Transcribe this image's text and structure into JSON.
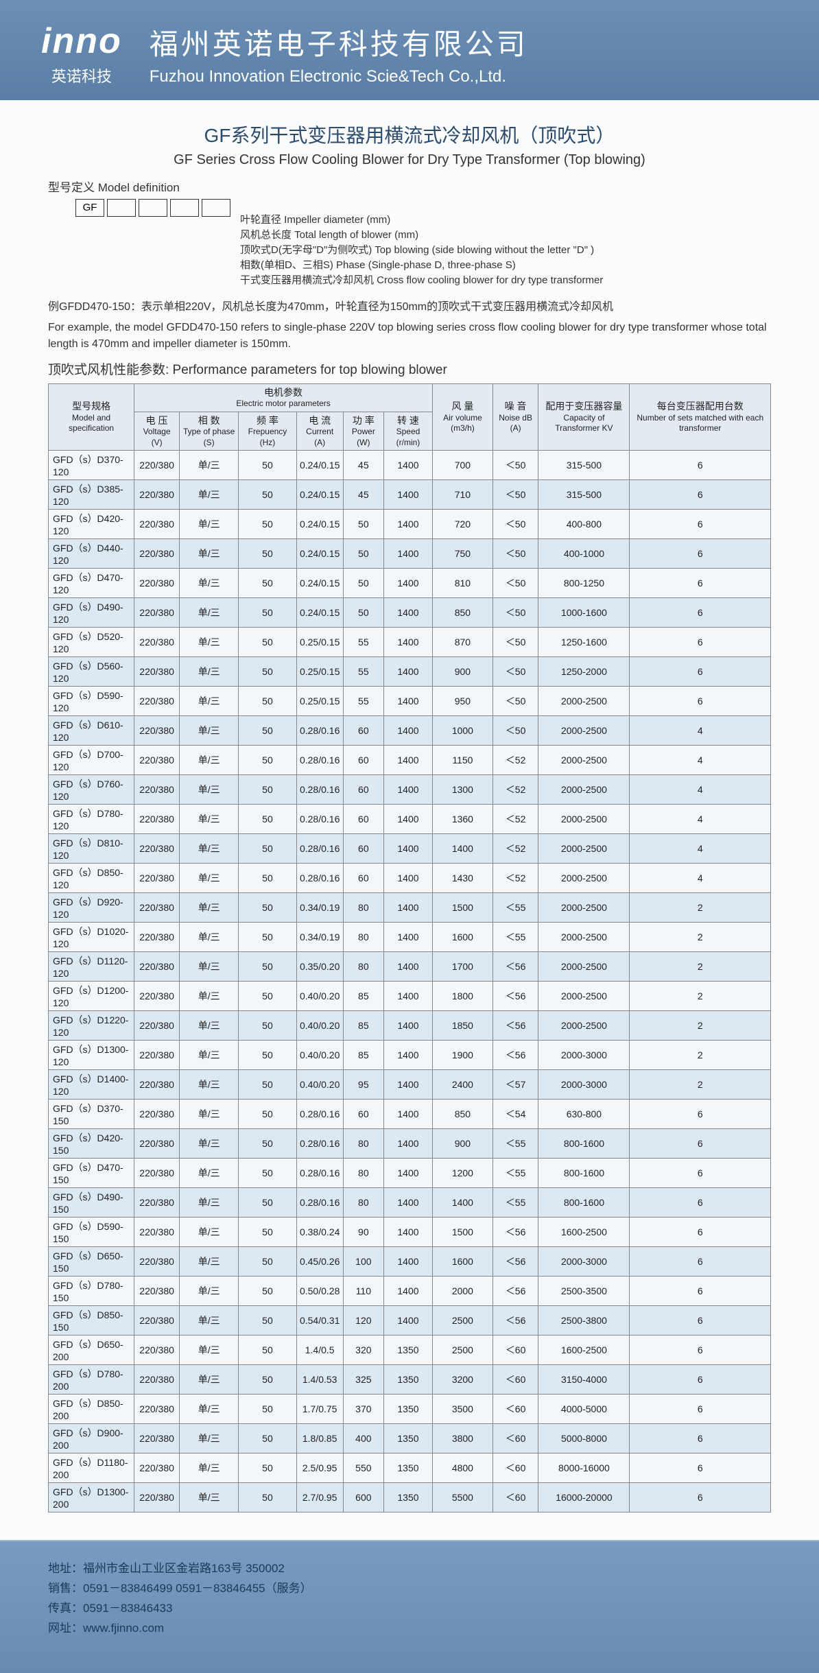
{
  "header": {
    "logo": "inno",
    "logo_sub": "英诺科技",
    "company_cn": "福州英诺电子科技有限公司",
    "company_en": "Fuzhou Innovation Electronic Scie&Tech Co.,Ltd."
  },
  "title_cn": "GF系列干式变压器用横流式冷却风机（顶吹式）",
  "title_en": "GF Series Cross Flow Cooling Blower for Dry Type Transformer (Top blowing)",
  "model_def_label": "型号定义  Model definition",
  "boxes": [
    "GF",
    "",
    "",
    "",
    ""
  ],
  "def_lines": [
    "叶轮直径 Impeller diameter (mm)",
    "风机总长度 Total length of blower (mm)",
    "顶吹式D(无字母\"D\"为侧吹式) Top blowing (side blowing without the letter \"D\" )",
    "相数(单相D、三相S)  Phase (Single-phase D, three-phase S)",
    "干式变压器用横流式冷却风机 Cross flow cooling blower for dry type transformer"
  ],
  "example_cn": "例GFDD470-150：表示单相220V，风机总长度为470mm，叶轮直径为150mm的顶吹式干式变压器用横流式冷却风机",
  "example_en": "For example, the model GFDD470-150 refers to single-phase 220V top blowing series cross flow cooling blower for dry type transformer whose total length is 470mm and impeller diameter is 150mm.",
  "section_title": "顶吹式风机性能参数: Performance parameters for top blowing blower",
  "headers": {
    "motor_params": {
      "cn": "电机参数",
      "en": "Electric motor parameters"
    },
    "model": {
      "cn": "型号规格",
      "en": "Model and specification"
    },
    "voltage": {
      "cn": "电 压",
      "en": "Voltage (V)"
    },
    "phase": {
      "cn": "相 数",
      "en": "Type of phase (S)"
    },
    "freq": {
      "cn": "频 率",
      "en": "Frepuency (Hz)"
    },
    "current": {
      "cn": "电 流",
      "en": "Current (A)"
    },
    "power": {
      "cn": "功 率",
      "en": "Power (W)"
    },
    "speed": {
      "cn": "转 速",
      "en": "Speed (r/min)"
    },
    "air": {
      "cn": "风 量",
      "en": "Air volume (m3/h)"
    },
    "noise": {
      "cn": "噪 音",
      "en": "Noise dB (A)"
    },
    "capacity": {
      "cn": "配用于变压器容量",
      "en": "Capacity of Transformer KV"
    },
    "sets": {
      "cn": "每台变压器配用台数",
      "en": "Number of sets matched with each transformer"
    }
  },
  "rows": [
    [
      "GFD（s）D370-120",
      "220/380",
      "单/三",
      "50",
      "0.24/0.15",
      "45",
      "1400",
      "700",
      "＜50",
      "315-500",
      "6"
    ],
    [
      "GFD（s）D385-120",
      "220/380",
      "单/三",
      "50",
      "0.24/0.15",
      "45",
      "1400",
      "710",
      "＜50",
      "315-500",
      "6"
    ],
    [
      "GFD（s）D420-120",
      "220/380",
      "单/三",
      "50",
      "0.24/0.15",
      "50",
      "1400",
      "720",
      "＜50",
      "400-800",
      "6"
    ],
    [
      "GFD（s）D440-120",
      "220/380",
      "单/三",
      "50",
      "0.24/0.15",
      "50",
      "1400",
      "750",
      "＜50",
      "400-1000",
      "6"
    ],
    [
      "GFD（s）D470-120",
      "220/380",
      "单/三",
      "50",
      "0.24/0.15",
      "50",
      "1400",
      "810",
      "＜50",
      "800-1250",
      "6"
    ],
    [
      "GFD（s）D490-120",
      "220/380",
      "单/三",
      "50",
      "0.24/0.15",
      "50",
      "1400",
      "850",
      "＜50",
      "1000-1600",
      "6"
    ],
    [
      "GFD（s）D520-120",
      "220/380",
      "单/三",
      "50",
      "0.25/0.15",
      "55",
      "1400",
      "870",
      "＜50",
      "1250-1600",
      "6"
    ],
    [
      "GFD（s）D560-120",
      "220/380",
      "单/三",
      "50",
      "0.25/0.15",
      "55",
      "1400",
      "900",
      "＜50",
      "1250-2000",
      "6"
    ],
    [
      "GFD（s）D590-120",
      "220/380",
      "单/三",
      "50",
      "0.25/0.15",
      "55",
      "1400",
      "950",
      "＜50",
      "2000-2500",
      "6"
    ],
    [
      "GFD（s）D610-120",
      "220/380",
      "单/三",
      "50",
      "0.28/0.16",
      "60",
      "1400",
      "1000",
      "＜50",
      "2000-2500",
      "4"
    ],
    [
      "GFD（s）D700-120",
      "220/380",
      "单/三",
      "50",
      "0.28/0.16",
      "60",
      "1400",
      "1150",
      "＜52",
      "2000-2500",
      "4"
    ],
    [
      "GFD（s）D760-120",
      "220/380",
      "单/三",
      "50",
      "0.28/0.16",
      "60",
      "1400",
      "1300",
      "＜52",
      "2000-2500",
      "4"
    ],
    [
      "GFD（s）D780-120",
      "220/380",
      "单/三",
      "50",
      "0.28/0.16",
      "60",
      "1400",
      "1360",
      "＜52",
      "2000-2500",
      "4"
    ],
    [
      "GFD（s）D810-120",
      "220/380",
      "单/三",
      "50",
      "0.28/0.16",
      "60",
      "1400",
      "1400",
      "＜52",
      "2000-2500",
      "4"
    ],
    [
      "GFD（s）D850-120",
      "220/380",
      "单/三",
      "50",
      "0.28/0.16",
      "60",
      "1400",
      "1430",
      "＜52",
      "2000-2500",
      "4"
    ],
    [
      "GFD（s）D920-120",
      "220/380",
      "单/三",
      "50",
      "0.34/0.19",
      "80",
      "1400",
      "1500",
      "＜55",
      "2000-2500",
      "2"
    ],
    [
      "GFD（s）D1020-120",
      "220/380",
      "单/三",
      "50",
      "0.34/0.19",
      "80",
      "1400",
      "1600",
      "＜55",
      "2000-2500",
      "2"
    ],
    [
      "GFD（s）D1120-120",
      "220/380",
      "单/三",
      "50",
      "0.35/0.20",
      "80",
      "1400",
      "1700",
      "＜56",
      "2000-2500",
      "2"
    ],
    [
      "GFD（s）D1200-120",
      "220/380",
      "单/三",
      "50",
      "0.40/0.20",
      "85",
      "1400",
      "1800",
      "＜56",
      "2000-2500",
      "2"
    ],
    [
      "GFD（s）D1220-120",
      "220/380",
      "单/三",
      "50",
      "0.40/0.20",
      "85",
      "1400",
      "1850",
      "＜56",
      "2000-2500",
      "2"
    ],
    [
      "GFD（s）D1300-120",
      "220/380",
      "单/三",
      "50",
      "0.40/0.20",
      "85",
      "1400",
      "1900",
      "＜56",
      "2000-3000",
      "2"
    ],
    [
      "GFD（s）D1400-120",
      "220/380",
      "单/三",
      "50",
      "0.40/0.20",
      "95",
      "1400",
      "2400",
      "＜57",
      "2000-3000",
      "2"
    ],
    [
      "GFD（s）D370-150",
      "220/380",
      "单/三",
      "50",
      "0.28/0.16",
      "60",
      "1400",
      "850",
      "＜54",
      "630-800",
      "6"
    ],
    [
      "GFD（s）D420-150",
      "220/380",
      "单/三",
      "50",
      "0.28/0.16",
      "80",
      "1400",
      "900",
      "＜55",
      "800-1600",
      "6"
    ],
    [
      "GFD（s）D470-150",
      "220/380",
      "单/三",
      "50",
      "0.28/0.16",
      "80",
      "1400",
      "1200",
      "＜55",
      "800-1600",
      "6"
    ],
    [
      "GFD（s）D490-150",
      "220/380",
      "单/三",
      "50",
      "0.28/0.16",
      "80",
      "1400",
      "1400",
      "＜55",
      "800-1600",
      "6"
    ],
    [
      "GFD（s）D590-150",
      "220/380",
      "单/三",
      "50",
      "0.38/0.24",
      "90",
      "1400",
      "1500",
      "＜56",
      "1600-2500",
      "6"
    ],
    [
      "GFD（s）D650-150",
      "220/380",
      "单/三",
      "50",
      "0.45/0.26",
      "100",
      "1400",
      "1600",
      "＜56",
      "2000-3000",
      "6"
    ],
    [
      "GFD（s）D780-150",
      "220/380",
      "单/三",
      "50",
      "0.50/0.28",
      "110",
      "1400",
      "2000",
      "＜56",
      "2500-3500",
      "6"
    ],
    [
      "GFD（s）D850-150",
      "220/380",
      "单/三",
      "50",
      "0.54/0.31",
      "120",
      "1400",
      "2500",
      "＜56",
      "2500-3800",
      "6"
    ],
    [
      "GFD（s）D650-200",
      "220/380",
      "单/三",
      "50",
      "1.4/0.5",
      "320",
      "1350",
      "2500",
      "＜60",
      "1600-2500",
      "6"
    ],
    [
      "GFD（s）D780-200",
      "220/380",
      "单/三",
      "50",
      "1.4/0.53",
      "325",
      "1350",
      "3200",
      "＜60",
      "3150-4000",
      "6"
    ],
    [
      "GFD（s）D850-200",
      "220/380",
      "单/三",
      "50",
      "1.7/0.75",
      "370",
      "1350",
      "3500",
      "＜60",
      "4000-5000",
      "6"
    ],
    [
      "GFD（s）D900-200",
      "220/380",
      "单/三",
      "50",
      "1.8/0.85",
      "400",
      "1350",
      "3800",
      "＜60",
      "5000-8000",
      "6"
    ],
    [
      "GFD（s）D1180-200",
      "220/380",
      "单/三",
      "50",
      "2.5/0.95",
      "550",
      "1350",
      "4800",
      "＜60",
      "8000-16000",
      "6"
    ],
    [
      "GFD（s）D1300-200",
      "220/380",
      "单/三",
      "50",
      "2.7/0.95",
      "600",
      "1350",
      "5500",
      "＜60",
      "16000-20000",
      "6"
    ]
  ],
  "footer": {
    "addr": "地址：福州市金山工业区金岩路163号  350002",
    "sales": "销售：0591－83846499  0591－83846455（服务）",
    "fax": "传真：0591－83846433",
    "web": "网址：www.fjinno.com"
  }
}
